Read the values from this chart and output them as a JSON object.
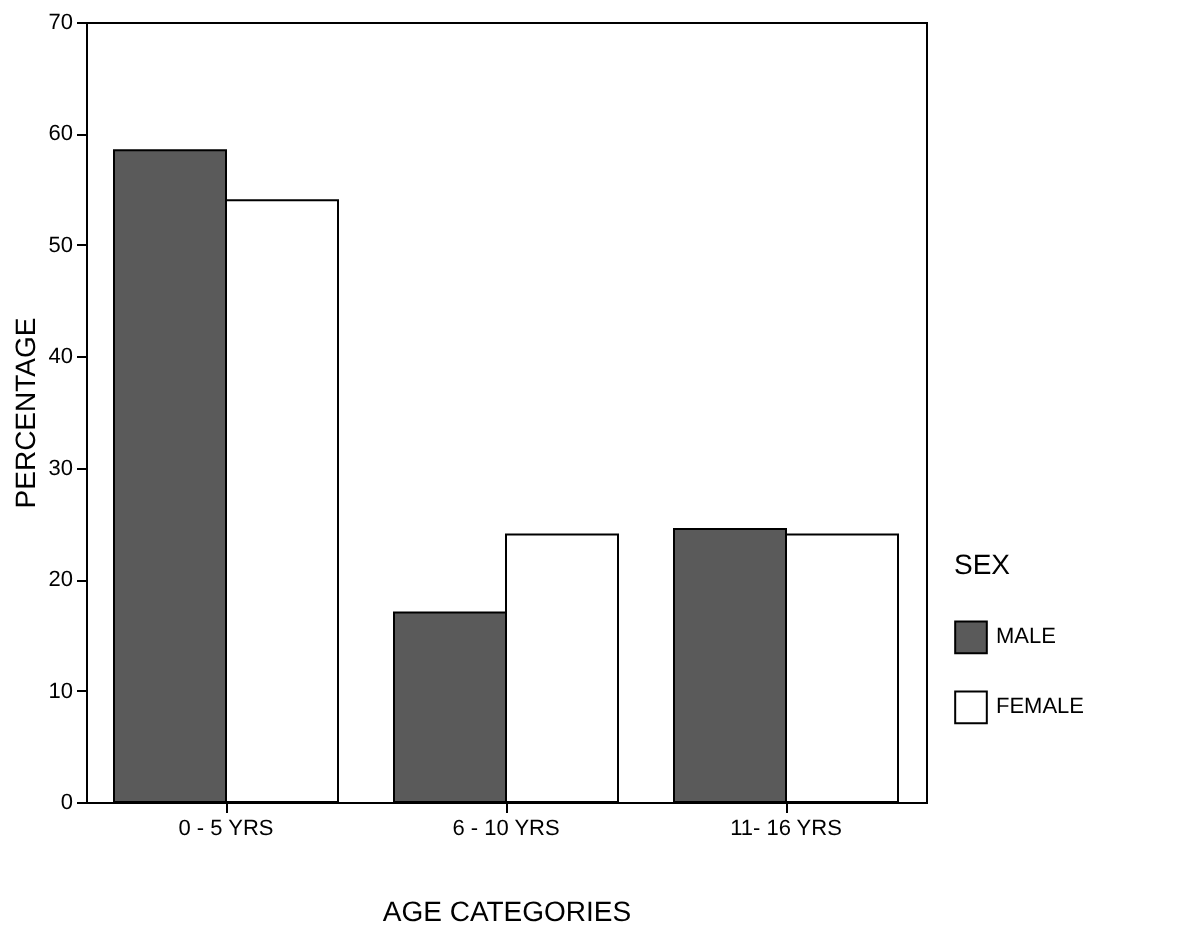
{
  "chart_data": {
    "type": "bar",
    "xlabel": "AGE CATEGORIES",
    "ylabel": "PERCENTAGE",
    "legend_title": "SEX",
    "categories": [
      "0 - 5 YRS",
      "6 - 10 YRS",
      "11- 16 YRS"
    ],
    "series": [
      {
        "name": "MALE",
        "color": "#5a5a5a",
        "values": [
          58.5,
          17,
          24.5
        ]
      },
      {
        "name": "FEMALE",
        "color": "#ffffff",
        "values": [
          54,
          24,
          24
        ]
      }
    ],
    "ylim": [
      0,
      70
    ],
    "yticks": [
      0,
      10,
      20,
      30,
      40,
      50,
      60,
      70
    ],
    "legend": "right",
    "grid": false
  }
}
